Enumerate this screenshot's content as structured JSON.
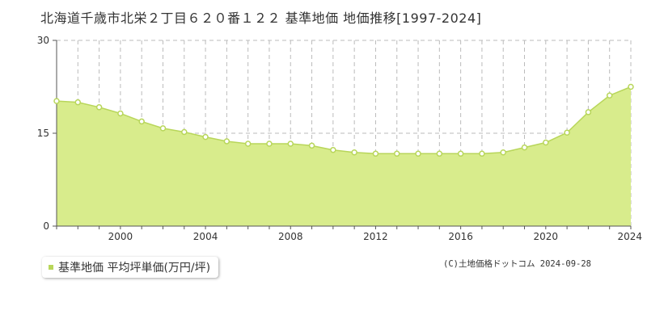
{
  "header": {
    "title": "北海道千歳市北栄２丁目６２０番１２２ 基準地価 地価推移[1997-2024]"
  },
  "legend": {
    "label": "基準地価 平均坪単価(万円/坪)"
  },
  "credit": "(C)土地価格ドットコム 2024-09-28",
  "colors": {
    "fill": "#d8ec8c",
    "line": "#b8d65a",
    "marker_stroke": "#b8d65a",
    "marker_fill": "#ffffff",
    "legend_swatch": "#b8d65a",
    "grid": "#bbbbbb",
    "axis": "#555555"
  },
  "chart_data": {
    "type": "area",
    "x": [
      1997,
      1998,
      1999,
      2000,
      2001,
      2002,
      2003,
      2004,
      2005,
      2006,
      2007,
      2008,
      2009,
      2010,
      2011,
      2012,
      2013,
      2014,
      2015,
      2016,
      2017,
      2018,
      2019,
      2020,
      2021,
      2022,
      2023,
      2024
    ],
    "series": [
      {
        "name": "基準地価 平均坪単価(万円/坪)",
        "values": [
          20.2,
          20.0,
          19.2,
          18.2,
          16.9,
          15.8,
          15.2,
          14.4,
          13.7,
          13.3,
          13.3,
          13.3,
          13.0,
          12.3,
          11.9,
          11.7,
          11.7,
          11.7,
          11.7,
          11.7,
          11.7,
          11.9,
          12.7,
          13.5,
          15.1,
          18.4,
          21.1,
          22.5
        ]
      }
    ],
    "xlim": [
      1997,
      2024
    ],
    "ylim": [
      0,
      30
    ],
    "x_ticks": [
      2000,
      2004,
      2008,
      2012,
      2016,
      2020,
      2024
    ],
    "y_ticks": [
      0,
      15,
      30
    ],
    "grid": true,
    "legend_position": "bottom-left"
  }
}
